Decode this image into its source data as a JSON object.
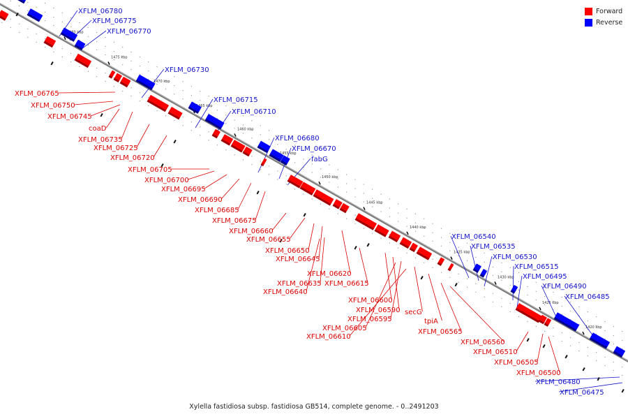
{
  "title": "Xylella fastidiosa subsp. fastidiosa GB514, complete genome. - 0..2491203",
  "legend": {
    "forward": {
      "label": "Forward",
      "color": "#ff0000"
    },
    "reverse": {
      "label": "Reverse",
      "color": "#0000ff"
    }
  },
  "ticks": [
    "1480 kbp",
    "1475 kbp",
    "1470 kbp",
    "1465 kbp",
    "1460 kbp",
    "1455 kbp",
    "1450 kbp",
    "1445 kbp",
    "1440 kbp",
    "1435 kbp",
    "1430 kbp",
    "1425 kbp",
    "1420 kbp"
  ],
  "genes_forward": [
    "XFLM_06765",
    "XFLM_06750",
    "XFLM_06745",
    "coaD",
    "XFLM_06735",
    "XFLM_06725",
    "XFLM_06720",
    "XFLM_06705",
    "XFLM_06700",
    "XFLM_06695",
    "XFLM_06690",
    "XFLM_06685",
    "XFLM_06675",
    "XFLM_06660",
    "XFLM_06655",
    "XFLM_06650",
    "XFLM_06645",
    "XFLM_06620",
    "XFLM_06635",
    "XFLM_06615",
    "XFLM_06640",
    "XFLM_06600",
    "XFLM_06590",
    "XFLM_06595",
    "secG",
    "tpiA",
    "XFLM_06605",
    "XFLM_06565",
    "XFLM_06610",
    "XFLM_06560",
    "XFLM_06510",
    "XFLM_06505",
    "XFLM_06500"
  ],
  "genes_reverse": [
    "XFLM_06780",
    "XFLM_06775",
    "XFLM_06770",
    "XFLM_06730",
    "XFLM_06715",
    "XFLM_06710",
    "XFLM_06680",
    "XFLM_06670",
    "fabG",
    "XFLM_06540",
    "XFLM_06535",
    "XFLM_06530",
    "XFLM_06515",
    "XFLM_06495",
    "XFLM_06490",
    "XFLM_06485",
    "XFLM_06480",
    "XFLM_06475"
  ]
}
